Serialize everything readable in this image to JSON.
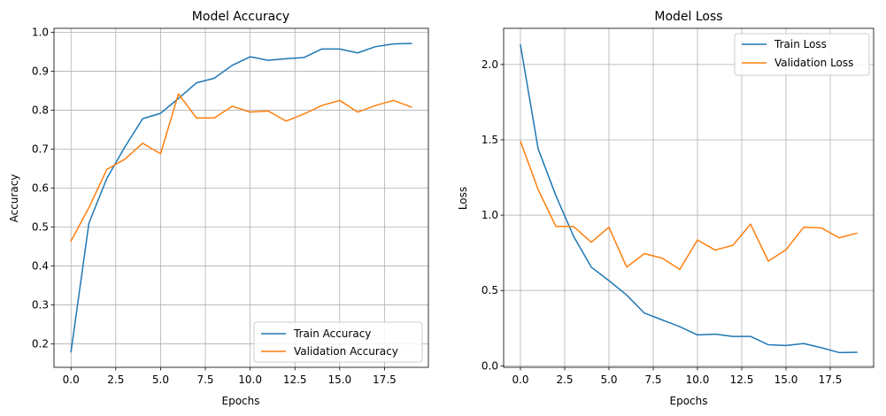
{
  "chart_data": [
    {
      "type": "line",
      "title": "Model Accuracy",
      "xlabel": "Epochs",
      "ylabel": "Accuracy",
      "x": [
        0,
        1,
        2,
        3,
        4,
        5,
        6,
        7,
        8,
        9,
        10,
        11,
        12,
        13,
        14,
        15,
        16,
        17,
        18,
        19
      ],
      "xlim": [
        -0.95,
        19.95
      ],
      "ylim": [
        0.14,
        1.01
      ],
      "xticks": [
        0.0,
        2.5,
        5.0,
        7.5,
        10.0,
        12.5,
        15.0,
        17.5
      ],
      "xtick_labels": [
        "0.0",
        "2.5",
        "5.0",
        "7.5",
        "10.0",
        "12.5",
        "15.0",
        "17.5"
      ],
      "yticks": [
        0.2,
        0.3,
        0.4,
        0.5,
        0.6,
        0.7,
        0.8,
        0.9,
        1.0
      ],
      "ytick_labels": [
        "0.2",
        "0.3",
        "0.4",
        "0.5",
        "0.6",
        "0.7",
        "0.8",
        "0.9",
        "1.0"
      ],
      "grid": true,
      "legend_position": "lower-right",
      "series": [
        {
          "name": "Train Accuracy",
          "color": "#1f77b4",
          "values": [
            0.18,
            0.51,
            0.625,
            0.705,
            0.778,
            0.792,
            0.83,
            0.87,
            0.882,
            0.915,
            0.937,
            0.928,
            0.932,
            0.935,
            0.957,
            0.957,
            0.947,
            0.963,
            0.97,
            0.971
          ]
        },
        {
          "name": "Validation Accuracy",
          "color": "#ff7f0e",
          "values": [
            0.464,
            0.55,
            0.648,
            0.674,
            0.715,
            0.688,
            0.842,
            0.78,
            0.78,
            0.81,
            0.795,
            0.798,
            0.772,
            0.79,
            0.812,
            0.825,
            0.795,
            0.812,
            0.825,
            0.808
          ]
        }
      ]
    },
    {
      "type": "line",
      "title": "Model Loss",
      "xlabel": "Epochs",
      "ylabel": "Loss",
      "x": [
        0,
        1,
        2,
        3,
        4,
        5,
        6,
        7,
        8,
        9,
        10,
        11,
        12,
        13,
        14,
        15,
        16,
        17,
        18,
        19
      ],
      "xlim": [
        -0.95,
        19.95
      ],
      "ylim": [
        -0.01,
        2.24
      ],
      "xticks": [
        0.0,
        2.5,
        5.0,
        7.5,
        10.0,
        12.5,
        15.0,
        17.5
      ],
      "xtick_labels": [
        "0.0",
        "2.5",
        "5.0",
        "7.5",
        "10.0",
        "12.5",
        "15.0",
        "17.5"
      ],
      "yticks": [
        0.0,
        0.5,
        1.0,
        1.5,
        2.0
      ],
      "ytick_labels": [
        "0.0",
        "0.5",
        "1.0",
        "1.5",
        "2.0"
      ],
      "grid": true,
      "legend_position": "upper-right",
      "series": [
        {
          "name": "Train Loss",
          "color": "#1f77b4",
          "values": [
            2.13,
            1.44,
            1.13,
            0.86,
            0.655,
            0.565,
            0.47,
            0.35,
            0.305,
            0.26,
            0.205,
            0.21,
            0.195,
            0.195,
            0.14,
            0.135,
            0.148,
            0.12,
            0.088,
            0.09
          ]
        },
        {
          "name": "Validation Loss",
          "color": "#ff7f0e",
          "values": [
            1.49,
            1.17,
            0.925,
            0.925,
            0.82,
            0.92,
            0.655,
            0.745,
            0.715,
            0.64,
            0.835,
            0.768,
            0.8,
            0.94,
            0.695,
            0.77,
            0.92,
            0.915,
            0.85,
            0.88
          ]
        }
      ]
    }
  ]
}
